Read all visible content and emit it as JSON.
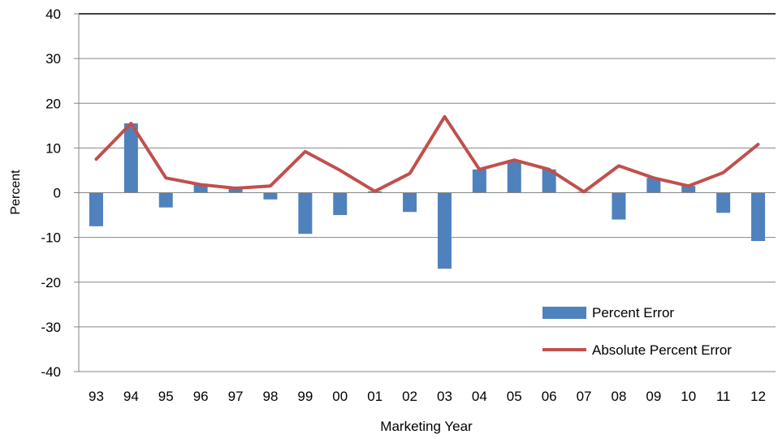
{
  "chart_data": {
    "type": "bar",
    "title": "",
    "xlabel": "Marketing Year",
    "ylabel": "Percent",
    "ylim": [
      -40,
      40
    ],
    "yticks": [
      40,
      30,
      20,
      10,
      0,
      -10,
      -20,
      -30,
      -40
    ],
    "grid": true,
    "legend_position": "bottom-right",
    "categories": [
      "93",
      "94",
      "95",
      "96",
      "97",
      "98",
      "99",
      "00",
      "01",
      "02",
      "03",
      "04",
      "05",
      "06",
      "07",
      "08",
      "09",
      "10",
      "11",
      "12"
    ],
    "series": [
      {
        "name": "Percent Error",
        "type": "bar",
        "color": "#4F81BD",
        "values": [
          -7.5,
          15.5,
          -3.3,
          1.8,
          1.0,
          -1.5,
          -9.2,
          -5.0,
          0.3,
          -4.3,
          -17.0,
          5.2,
          7.3,
          5.2,
          0.2,
          -6.0,
          3.3,
          1.5,
          -4.5,
          -10.8
        ]
      },
      {
        "name": "Absolute Percent Error",
        "type": "line",
        "color": "#C0504D",
        "values": [
          7.5,
          15.5,
          3.3,
          1.8,
          1.0,
          1.5,
          9.2,
          5.0,
          0.3,
          4.3,
          17.0,
          5.2,
          7.3,
          5.2,
          0.2,
          6.0,
          3.3,
          1.5,
          4.5,
          10.8
        ]
      }
    ]
  }
}
